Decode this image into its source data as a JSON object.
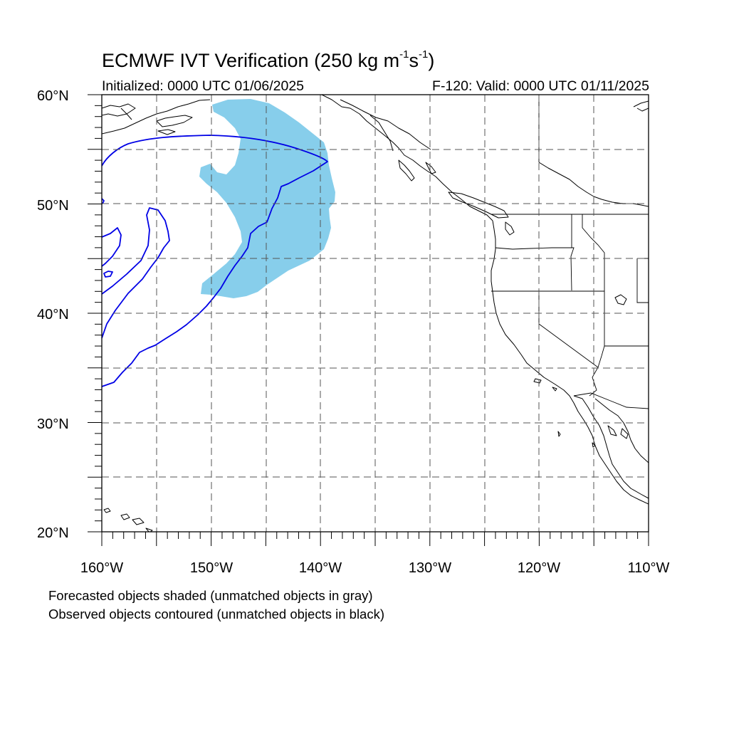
{
  "title": {
    "main": "ECMWF IVT Verification (250 kg m",
    "sup1": "-1",
    "mid": "s",
    "sup2": "-1",
    "end": ")"
  },
  "subtitle_left": "Initialized: 0000 UTC 01/06/2025",
  "subtitle_right": "F-120: Valid: 0000 UTC 01/11/2025",
  "notes": [
    "Forecasted objects shaded (unmatched objects in gray)",
    "Observed objects contoured (unmatched objects in black)"
  ],
  "colors": {
    "forecast_fill": "#87ceeb",
    "observed_contour": "#0000e6",
    "coast": "#000000",
    "grid": "#555555"
  },
  "map": {
    "projection": "cylindrical equidistant",
    "lon_range": [
      -160,
      -110
    ],
    "lat_range": [
      20,
      60
    ],
    "lon_labels": [
      "160°W",
      "150°W",
      "140°W",
      "130°W",
      "120°W",
      "110°W"
    ],
    "lat_labels": [
      "60°N",
      "50°N",
      "40°N",
      "30°N",
      "20°N"
    ],
    "grid_lons": [
      -155,
      -150,
      -145,
      -140,
      -135,
      -130,
      -125,
      -120,
      -115
    ],
    "grid_lats": [
      55,
      50,
      45,
      40,
      35,
      30,
      25
    ]
  }
}
